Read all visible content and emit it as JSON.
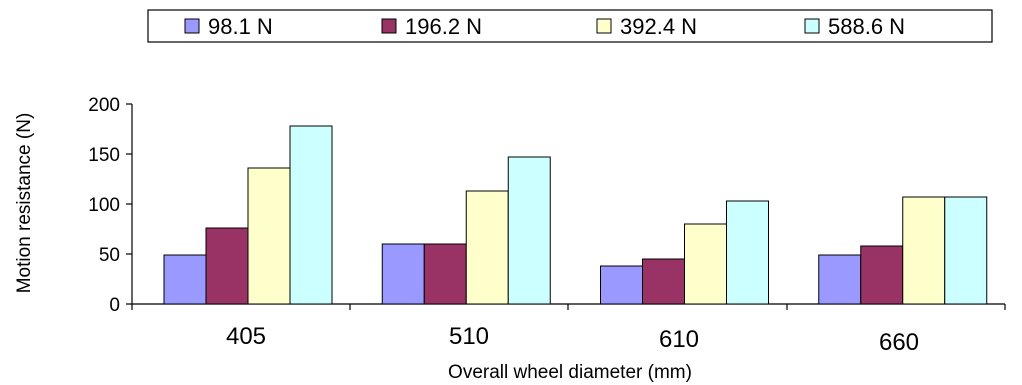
{
  "chart_data": {
    "type": "bar",
    "title": "",
    "xlabel": "Overall wheel diameter (mm)",
    "ylabel": "Motion resistance (N)",
    "categories": [
      "405",
      "510",
      "610",
      "660"
    ],
    "ylim": [
      0,
      200
    ],
    "yticks": [
      "0",
      "50",
      "100",
      "150",
      "200"
    ],
    "grid": false,
    "legend_position": "top",
    "series": [
      {
        "name": "98.1 N",
        "color": "#9999ff",
        "values": [
          49,
          60,
          38,
          49
        ]
      },
      {
        "name": "196.2 N",
        "color": "#993366",
        "values": [
          76,
          60,
          45,
          58
        ]
      },
      {
        "name": "392.4 N",
        "color": "#ffffcc",
        "values": [
          136,
          113,
          80,
          107
        ]
      },
      {
        "name": "588.6 N",
        "color": "#ccffff",
        "values": [
          178,
          147,
          103,
          107
        ]
      }
    ]
  }
}
